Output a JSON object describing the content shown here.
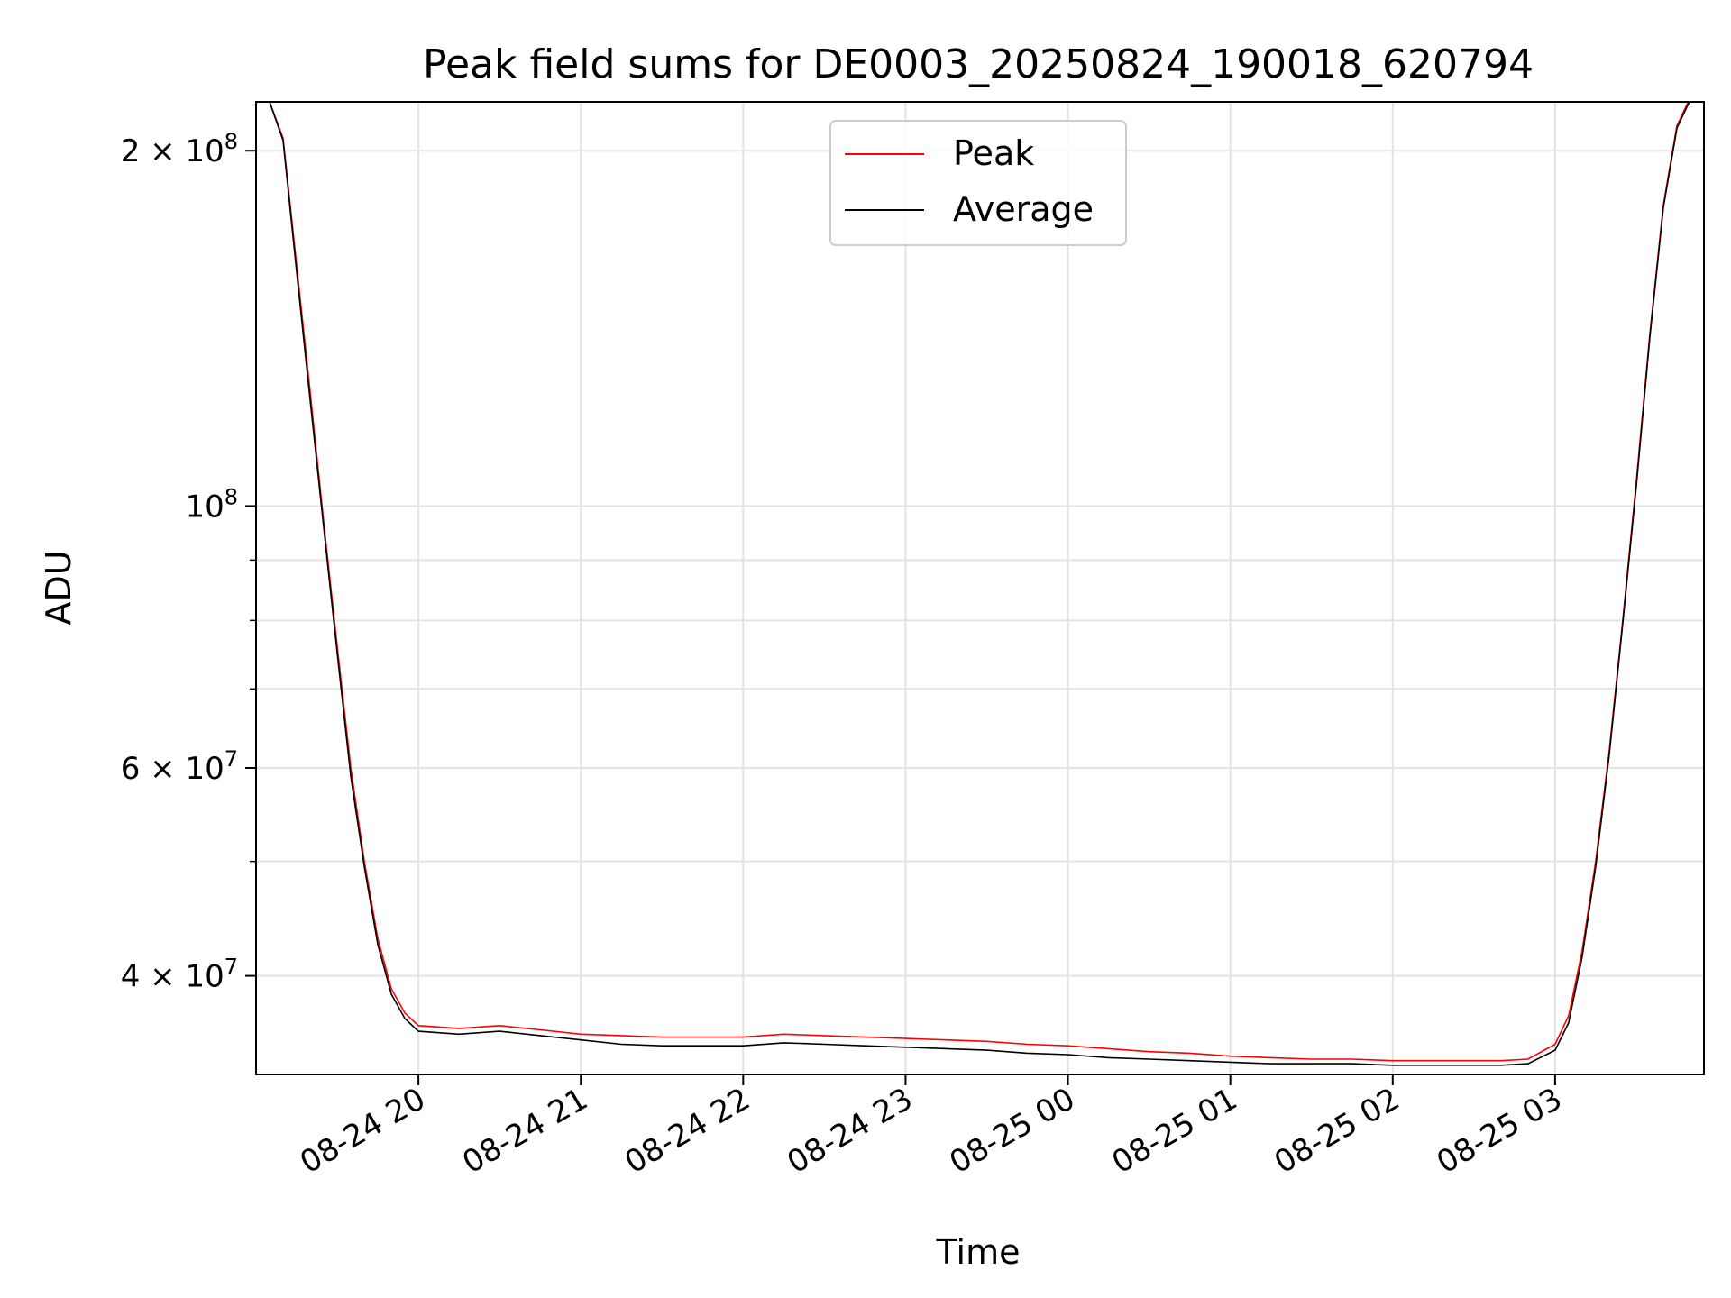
{
  "chart_data": {
    "type": "line",
    "title": "Peak field sums for DE0003_20250824_190018_620794",
    "xlabel": "Time",
    "ylabel": "ADU",
    "yscale": "log",
    "xlim": [
      "2025-08-24 19:00",
      "2025-08-25 03:55"
    ],
    "ylim": [
      33000000,
      220000000
    ],
    "grid": true,
    "legend": {
      "placement": "upper center"
    },
    "x_ticks": [
      "08-24 20",
      "08-24 21",
      "08-24 22",
      "08-24 23",
      "08-25 00",
      "08-25 01",
      "08-25 02",
      "08-25 03"
    ],
    "y_ticks": [
      {
        "value": 40000000,
        "base": "4 × 10",
        "exp": "7"
      },
      {
        "value": 60000000,
        "base": "6 × 10",
        "exp": "7"
      },
      {
        "value": 100000000,
        "base": "10",
        "exp": "8"
      },
      {
        "value": 200000000,
        "base": "2 × 10",
        "exp": "8"
      }
    ],
    "series": [
      {
        "name": "Peak",
        "color": "#ff0000",
        "x": [
          "2025-08-24 19:05",
          "2025-08-24 19:10",
          "2025-08-24 19:15",
          "2025-08-24 19:20",
          "2025-08-24 19:25",
          "2025-08-24 19:30",
          "2025-08-24 19:35",
          "2025-08-24 19:40",
          "2025-08-24 19:45",
          "2025-08-24 19:50",
          "2025-08-24 19:55",
          "2025-08-24 20:00",
          "2025-08-24 20:15",
          "2025-08-24 20:30",
          "2025-08-24 20:45",
          "2025-08-24 21:00",
          "2025-08-24 21:15",
          "2025-08-24 21:30",
          "2025-08-24 21:45",
          "2025-08-24 22:00",
          "2025-08-24 22:15",
          "2025-08-24 22:30",
          "2025-08-24 22:45",
          "2025-08-24 23:00",
          "2025-08-24 23:15",
          "2025-08-24 23:30",
          "2025-08-24 23:45",
          "2025-08-25 00:00",
          "2025-08-25 00:15",
          "2025-08-25 00:30",
          "2025-08-25 00:45",
          "2025-08-25 01:00",
          "2025-08-25 01:15",
          "2025-08-25 01:30",
          "2025-08-25 01:45",
          "2025-08-25 02:00",
          "2025-08-25 02:15",
          "2025-08-25 02:30",
          "2025-08-25 02:40",
          "2025-08-25 02:50",
          "2025-08-25 03:00",
          "2025-08-25 03:05",
          "2025-08-25 03:10",
          "2025-08-25 03:15",
          "2025-08-25 03:20",
          "2025-08-25 03:25",
          "2025-08-25 03:30",
          "2025-08-25 03:35",
          "2025-08-25 03:40",
          "2025-08-25 03:45",
          "2025-08-25 03:50",
          "2025-08-25 03:52"
        ],
        "y": [
          220000000,
          205000000,
          160000000,
          125000000,
          97000000,
          76000000,
          60000000,
          50000000,
          43000000,
          39000000,
          37200000,
          36300000,
          36100000,
          36300000,
          36000000,
          35700000,
          35600000,
          35500000,
          35500000,
          35500000,
          35700000,
          35600000,
          35500000,
          35400000,
          35300000,
          35200000,
          35000000,
          34900000,
          34700000,
          34500000,
          34400000,
          34200000,
          34100000,
          34000000,
          34000000,
          33900000,
          33900000,
          33900000,
          33900000,
          34000000,
          35000000,
          37000000,
          42000000,
          50000000,
          62000000,
          80000000,
          105000000,
          140000000,
          180000000,
          210000000,
          222000000,
          225000000
        ]
      },
      {
        "name": "Average",
        "color": "#000000",
        "x": [
          "2025-08-24 19:05",
          "2025-08-24 19:10",
          "2025-08-24 19:15",
          "2025-08-24 19:20",
          "2025-08-24 19:25",
          "2025-08-24 19:30",
          "2025-08-24 19:35",
          "2025-08-24 19:40",
          "2025-08-24 19:45",
          "2025-08-24 19:50",
          "2025-08-24 19:55",
          "2025-08-24 20:00",
          "2025-08-24 20:15",
          "2025-08-24 20:30",
          "2025-08-24 20:45",
          "2025-08-24 21:00",
          "2025-08-24 21:15",
          "2025-08-24 21:30",
          "2025-08-24 21:45",
          "2025-08-24 22:00",
          "2025-08-24 22:15",
          "2025-08-24 22:30",
          "2025-08-24 22:45",
          "2025-08-24 23:00",
          "2025-08-24 23:15",
          "2025-08-24 23:30",
          "2025-08-24 23:45",
          "2025-08-25 00:00",
          "2025-08-25 00:15",
          "2025-08-25 00:30",
          "2025-08-25 00:45",
          "2025-08-25 01:00",
          "2025-08-25 01:15",
          "2025-08-25 01:30",
          "2025-08-25 01:45",
          "2025-08-25 02:00",
          "2025-08-25 02:15",
          "2025-08-25 02:30",
          "2025-08-25 02:40",
          "2025-08-25 02:50",
          "2025-08-25 03:00",
          "2025-08-25 03:05",
          "2025-08-25 03:10",
          "2025-08-25 03:15",
          "2025-08-25 03:20",
          "2025-08-25 03:25",
          "2025-08-25 03:30",
          "2025-08-25 03:35",
          "2025-08-25 03:40",
          "2025-08-25 03:45",
          "2025-08-25 03:50",
          "2025-08-25 03:52"
        ],
        "y": [
          220000000,
          204000000,
          158000000,
          123000000,
          96000000,
          75000000,
          59000000,
          49500000,
          42500000,
          38600000,
          36800000,
          35900000,
          35700000,
          35900000,
          35600000,
          35300000,
          35000000,
          34900000,
          34900000,
          34900000,
          35100000,
          35000000,
          34900000,
          34800000,
          34700000,
          34600000,
          34400000,
          34300000,
          34100000,
          34000000,
          33900000,
          33800000,
          33700000,
          33700000,
          33700000,
          33600000,
          33600000,
          33600000,
          33600000,
          33700000,
          34600000,
          36500000,
          41500000,
          49500000,
          61500000,
          79500000,
          104000000,
          139000000,
          179000000,
          209000000,
          221000000,
          224000000
        ]
      }
    ]
  }
}
